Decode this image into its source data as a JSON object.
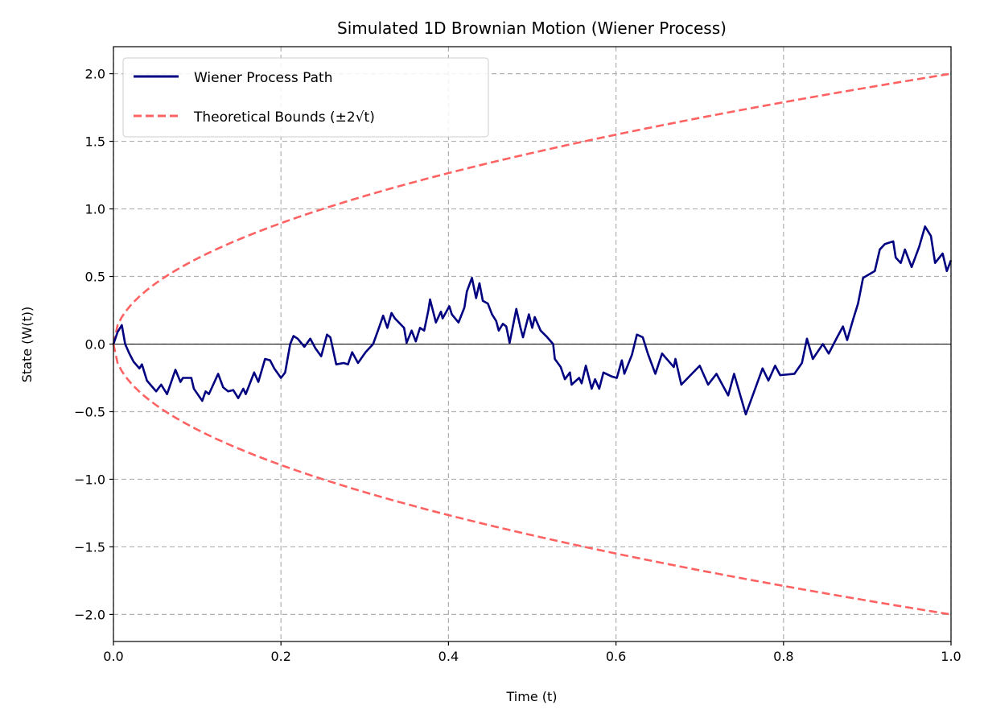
{
  "chart_data": {
    "type": "line",
    "title": "Simulated 1D Brownian Motion (Wiener Process)",
    "xlabel": "Time (t)",
    "ylabel": "State (W(t))",
    "xlim": [
      0,
      1
    ],
    "ylim": [
      -2.2,
      2.2
    ],
    "xticks": [
      0.0,
      0.2,
      0.4,
      0.6,
      0.8,
      1.0
    ],
    "xtick_labels": [
      "0.0",
      "0.2",
      "0.4",
      "0.6",
      "0.8",
      "1.0"
    ],
    "yticks": [
      -2.0,
      -1.5,
      -1.0,
      -0.5,
      0.0,
      0.5,
      1.0,
      1.5,
      2.0
    ],
    "ytick_labels": [
      "−2.0",
      "−1.5",
      "−1.0",
      "−0.5",
      "0.0",
      "0.5",
      "1.0",
      "1.5",
      "2.0"
    ],
    "grid": true,
    "legend_position": "top-left",
    "colors": {
      "path": "#000080",
      "bounds": "#ff6262",
      "grid": "#b0b0b0",
      "zero_line": "#000000"
    },
    "series": [
      {
        "name": "Wiener Process Path",
        "style": "solid",
        "x": [
          0,
          0.005,
          0.01,
          0.014,
          0.019,
          0.024,
          0.031,
          0.034,
          0.04,
          0.051,
          0.057,
          0.064,
          0.069,
          0.074,
          0.08,
          0.083,
          0.093,
          0.096,
          0.106,
          0.11,
          0.114,
          0.125,
          0.131,
          0.137,
          0.143,
          0.149,
          0.155,
          0.158,
          0.168,
          0.173,
          0.181,
          0.187,
          0.192,
          0.2,
          0.205,
          0.211,
          0.215,
          0.22,
          0.228,
          0.235,
          0.241,
          0.248,
          0.255,
          0.259,
          0.266,
          0.275,
          0.28,
          0.285,
          0.292,
          0.301,
          0.31,
          0.317,
          0.322,
          0.327,
          0.332,
          0.336,
          0.347,
          0.35,
          0.356,
          0.361,
          0.366,
          0.371,
          0.376,
          0.378,
          0.385,
          0.391,
          0.393,
          0.401,
          0.404,
          0.412,
          0.419,
          0.422,
          0.428,
          0.433,
          0.437,
          0.441,
          0.447,
          0.452,
          0.457,
          0.46,
          0.465,
          0.469,
          0.473,
          0.481,
          0.486,
          0.489,
          0.496,
          0.5,
          0.503,
          0.51,
          0.518,
          0.525,
          0.527,
          0.534,
          0.539,
          0.545,
          0.547,
          0.556,
          0.559,
          0.564,
          0.571,
          0.575,
          0.58,
          0.585,
          0.595,
          0.601,
          0.607,
          0.61,
          0.619,
          0.625,
          0.632,
          0.638,
          0.647,
          0.655,
          0.669,
          0.671,
          0.678,
          0.7,
          0.71,
          0.72,
          0.734,
          0.741,
          0.755,
          0.765,
          0.775,
          0.782,
          0.79,
          0.796,
          0.813,
          0.822,
          0.828,
          0.835,
          0.847,
          0.854,
          0.864,
          0.871,
          0.876,
          0.883,
          0.889,
          0.895,
          0.909,
          0.915,
          0.921,
          0.931,
          0.934,
          0.94,
          0.945,
          0.953,
          0.962,
          0.969,
          0.976,
          0.981,
          0.99,
          0.995,
          1.0
        ],
        "y": [
          0,
          0.09,
          0.14,
          0.0,
          -0.07,
          -0.13,
          -0.18,
          -0.15,
          -0.27,
          -0.35,
          -0.3,
          -0.37,
          -0.28,
          -0.19,
          -0.28,
          -0.25,
          -0.25,
          -0.33,
          -0.42,
          -0.35,
          -0.37,
          -0.22,
          -0.32,
          -0.35,
          -0.34,
          -0.4,
          -0.33,
          -0.37,
          -0.21,
          -0.28,
          -0.11,
          -0.12,
          -0.18,
          -0.25,
          -0.21,
          0.0,
          0.06,
          0.04,
          -0.02,
          0.04,
          -0.03,
          -0.09,
          0.07,
          0.05,
          -0.15,
          -0.14,
          -0.15,
          -0.06,
          -0.14,
          -0.06,
          0.0,
          0.12,
          0.21,
          0.12,
          0.23,
          0.19,
          0.12,
          0.01,
          0.1,
          0.02,
          0.12,
          0.1,
          0.25,
          0.33,
          0.16,
          0.24,
          0.19,
          0.28,
          0.22,
          0.16,
          0.27,
          0.39,
          0.49,
          0.34,
          0.45,
          0.32,
          0.3,
          0.22,
          0.17,
          0.1,
          0.15,
          0.13,
          0.01,
          0.26,
          0.12,
          0.05,
          0.22,
          0.12,
          0.2,
          0.1,
          0.05,
          0.0,
          -0.11,
          -0.17,
          -0.26,
          -0.21,
          -0.3,
          -0.25,
          -0.29,
          -0.16,
          -0.33,
          -0.26,
          -0.33,
          -0.21,
          -0.24,
          -0.25,
          -0.12,
          -0.22,
          -0.08,
          0.07,
          0.05,
          -0.07,
          -0.22,
          -0.07,
          -0.17,
          -0.11,
          -0.3,
          -0.16,
          -0.3,
          -0.22,
          -0.38,
          -0.22,
          -0.52,
          -0.35,
          -0.18,
          -0.27,
          -0.16,
          -0.23,
          -0.22,
          -0.14,
          0.04,
          -0.11,
          0.0,
          -0.07,
          0.05,
          0.13,
          0.03,
          0.18,
          0.3,
          0.49,
          0.54,
          0.7,
          0.74,
          0.76,
          0.64,
          0.6,
          0.7,
          0.57,
          0.72,
          0.87,
          0.8,
          0.6,
          0.67,
          0.54,
          0.62
        ]
      },
      {
        "name": "Theoretical Bounds (±2√t)",
        "style": "dashed",
        "formula": "±2√t"
      }
    ]
  }
}
